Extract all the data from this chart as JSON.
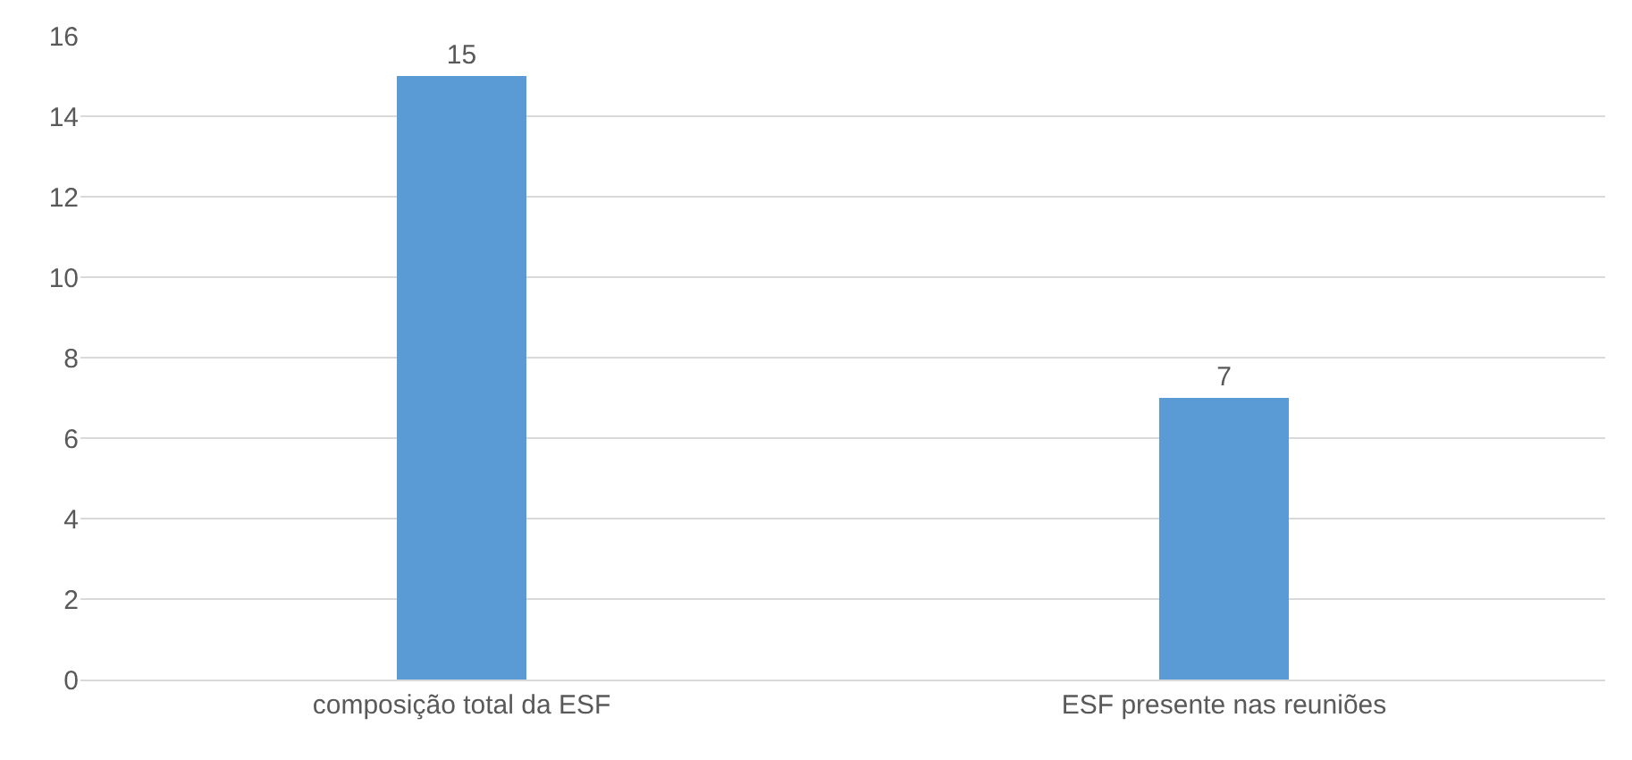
{
  "chart_data": {
    "type": "bar",
    "categories": [
      "composição total da ESF",
      "ESF presente nas reuniões"
    ],
    "series": [
      {
        "color": "#5b9bd5",
        "values": [
          15,
          7
        ]
      }
    ],
    "ylim": [
      0,
      16
    ],
    "yticks": [
      0,
      2,
      4,
      6,
      8,
      10,
      12,
      14,
      16
    ],
    "grid": "y",
    "legend": false,
    "data_labels": true
  }
}
